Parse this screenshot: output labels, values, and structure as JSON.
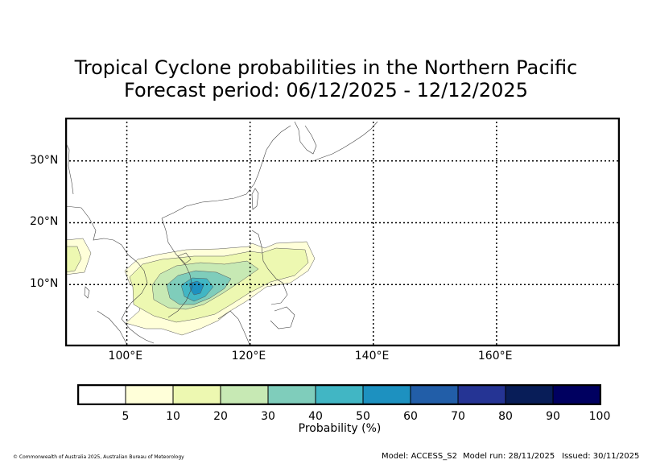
{
  "title": {
    "line1": "Tropical Cyclone probabilities in the Northern Pacific",
    "line2": "Forecast period: 06/12/2025 - 12/12/2025"
  },
  "map": {
    "lon_range": [
      90,
      180
    ],
    "lat_range": [
      0,
      37
    ],
    "lon_ticks": [
      {
        "value": 100,
        "label": "100°E"
      },
      {
        "value": 120,
        "label": "120°E"
      },
      {
        "value": 140,
        "label": "140°E"
      },
      {
        "value": 160,
        "label": "160°E"
      }
    ],
    "lat_ticks": [
      {
        "value": 10,
        "label": "10°N"
      },
      {
        "value": 20,
        "label": "20°N"
      },
      {
        "value": 30,
        "label": "30°N"
      }
    ],
    "gridlines": "dotted",
    "contour_levels": [
      5,
      10,
      20,
      30,
      40,
      50
    ],
    "probability_field": [
      {
        "level": 5,
        "color": "#ffffd9"
      },
      {
        "level": 10,
        "color": "#edf8b1"
      },
      {
        "level": 20,
        "color": "#c7e9b4"
      },
      {
        "level": 30,
        "color": "#7fcdbb"
      },
      {
        "level": 40,
        "color": "#41b6c4"
      },
      {
        "level": 50,
        "color": "#1d91c0"
      }
    ]
  },
  "colorbar": {
    "bins": [
      {
        "label": "",
        "color": "#ffffff"
      },
      {
        "label": "5",
        "color": "#ffffd9"
      },
      {
        "label": "10",
        "color": "#edf8b1"
      },
      {
        "label": "20",
        "color": "#c7e9b4"
      },
      {
        "label": "30",
        "color": "#7fcdbb"
      },
      {
        "label": "40",
        "color": "#41b6c4"
      },
      {
        "label": "50",
        "color": "#1d91c0"
      },
      {
        "label": "60",
        "color": "#225ea8"
      },
      {
        "label": "70",
        "color": "#253494"
      },
      {
        "label": "80",
        "color": "#081d58"
      },
      {
        "label": "90",
        "color": "#000060"
      }
    ],
    "end_label": "100",
    "label": "Probability (%)"
  },
  "footer": {
    "copyright": "© Commonwealth of Australia 2025, Australian Bureau of Meteorology",
    "model": "Model: ACCESS_S2",
    "run": "Model run: 28/11/2025",
    "issued": "Issued: 30/11/2025"
  }
}
